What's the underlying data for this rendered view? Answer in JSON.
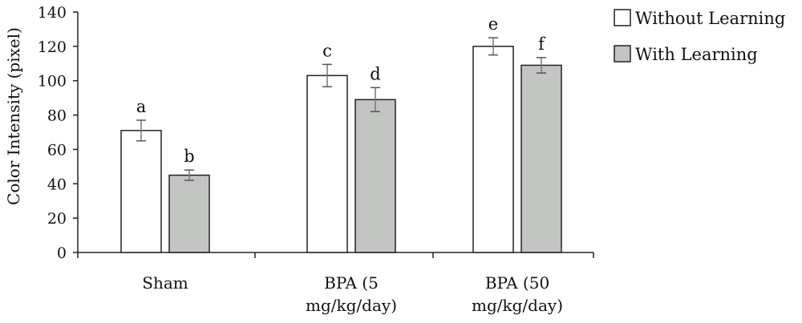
{
  "chart_data": {
    "type": "bar",
    "ylabel": "Color Intensity (pixel)",
    "xlabel": "",
    "ylim": [
      0,
      140
    ],
    "yticks": [
      0,
      20,
      40,
      60,
      80,
      100,
      120,
      140
    ],
    "grid": false,
    "legend_position": "top-right",
    "categories": [
      [
        "Sham"
      ],
      [
        "BPA (5",
        "mg/kg/day)"
      ],
      [
        "BPA (50",
        "mg/kg/day)"
      ]
    ],
    "series": [
      {
        "name": "Without Learning",
        "color": "#ffffff",
        "values": [
          71,
          103,
          120
        ],
        "errors": [
          6,
          6.5,
          5
        ],
        "labels": [
          "a",
          "c",
          "e"
        ]
      },
      {
        "name": "With Learning",
        "color": "#c2c5c1",
        "values": [
          45,
          89,
          109
        ],
        "errors": [
          3,
          7,
          4.5
        ],
        "labels": [
          "b",
          "d",
          "f"
        ]
      }
    ]
  }
}
